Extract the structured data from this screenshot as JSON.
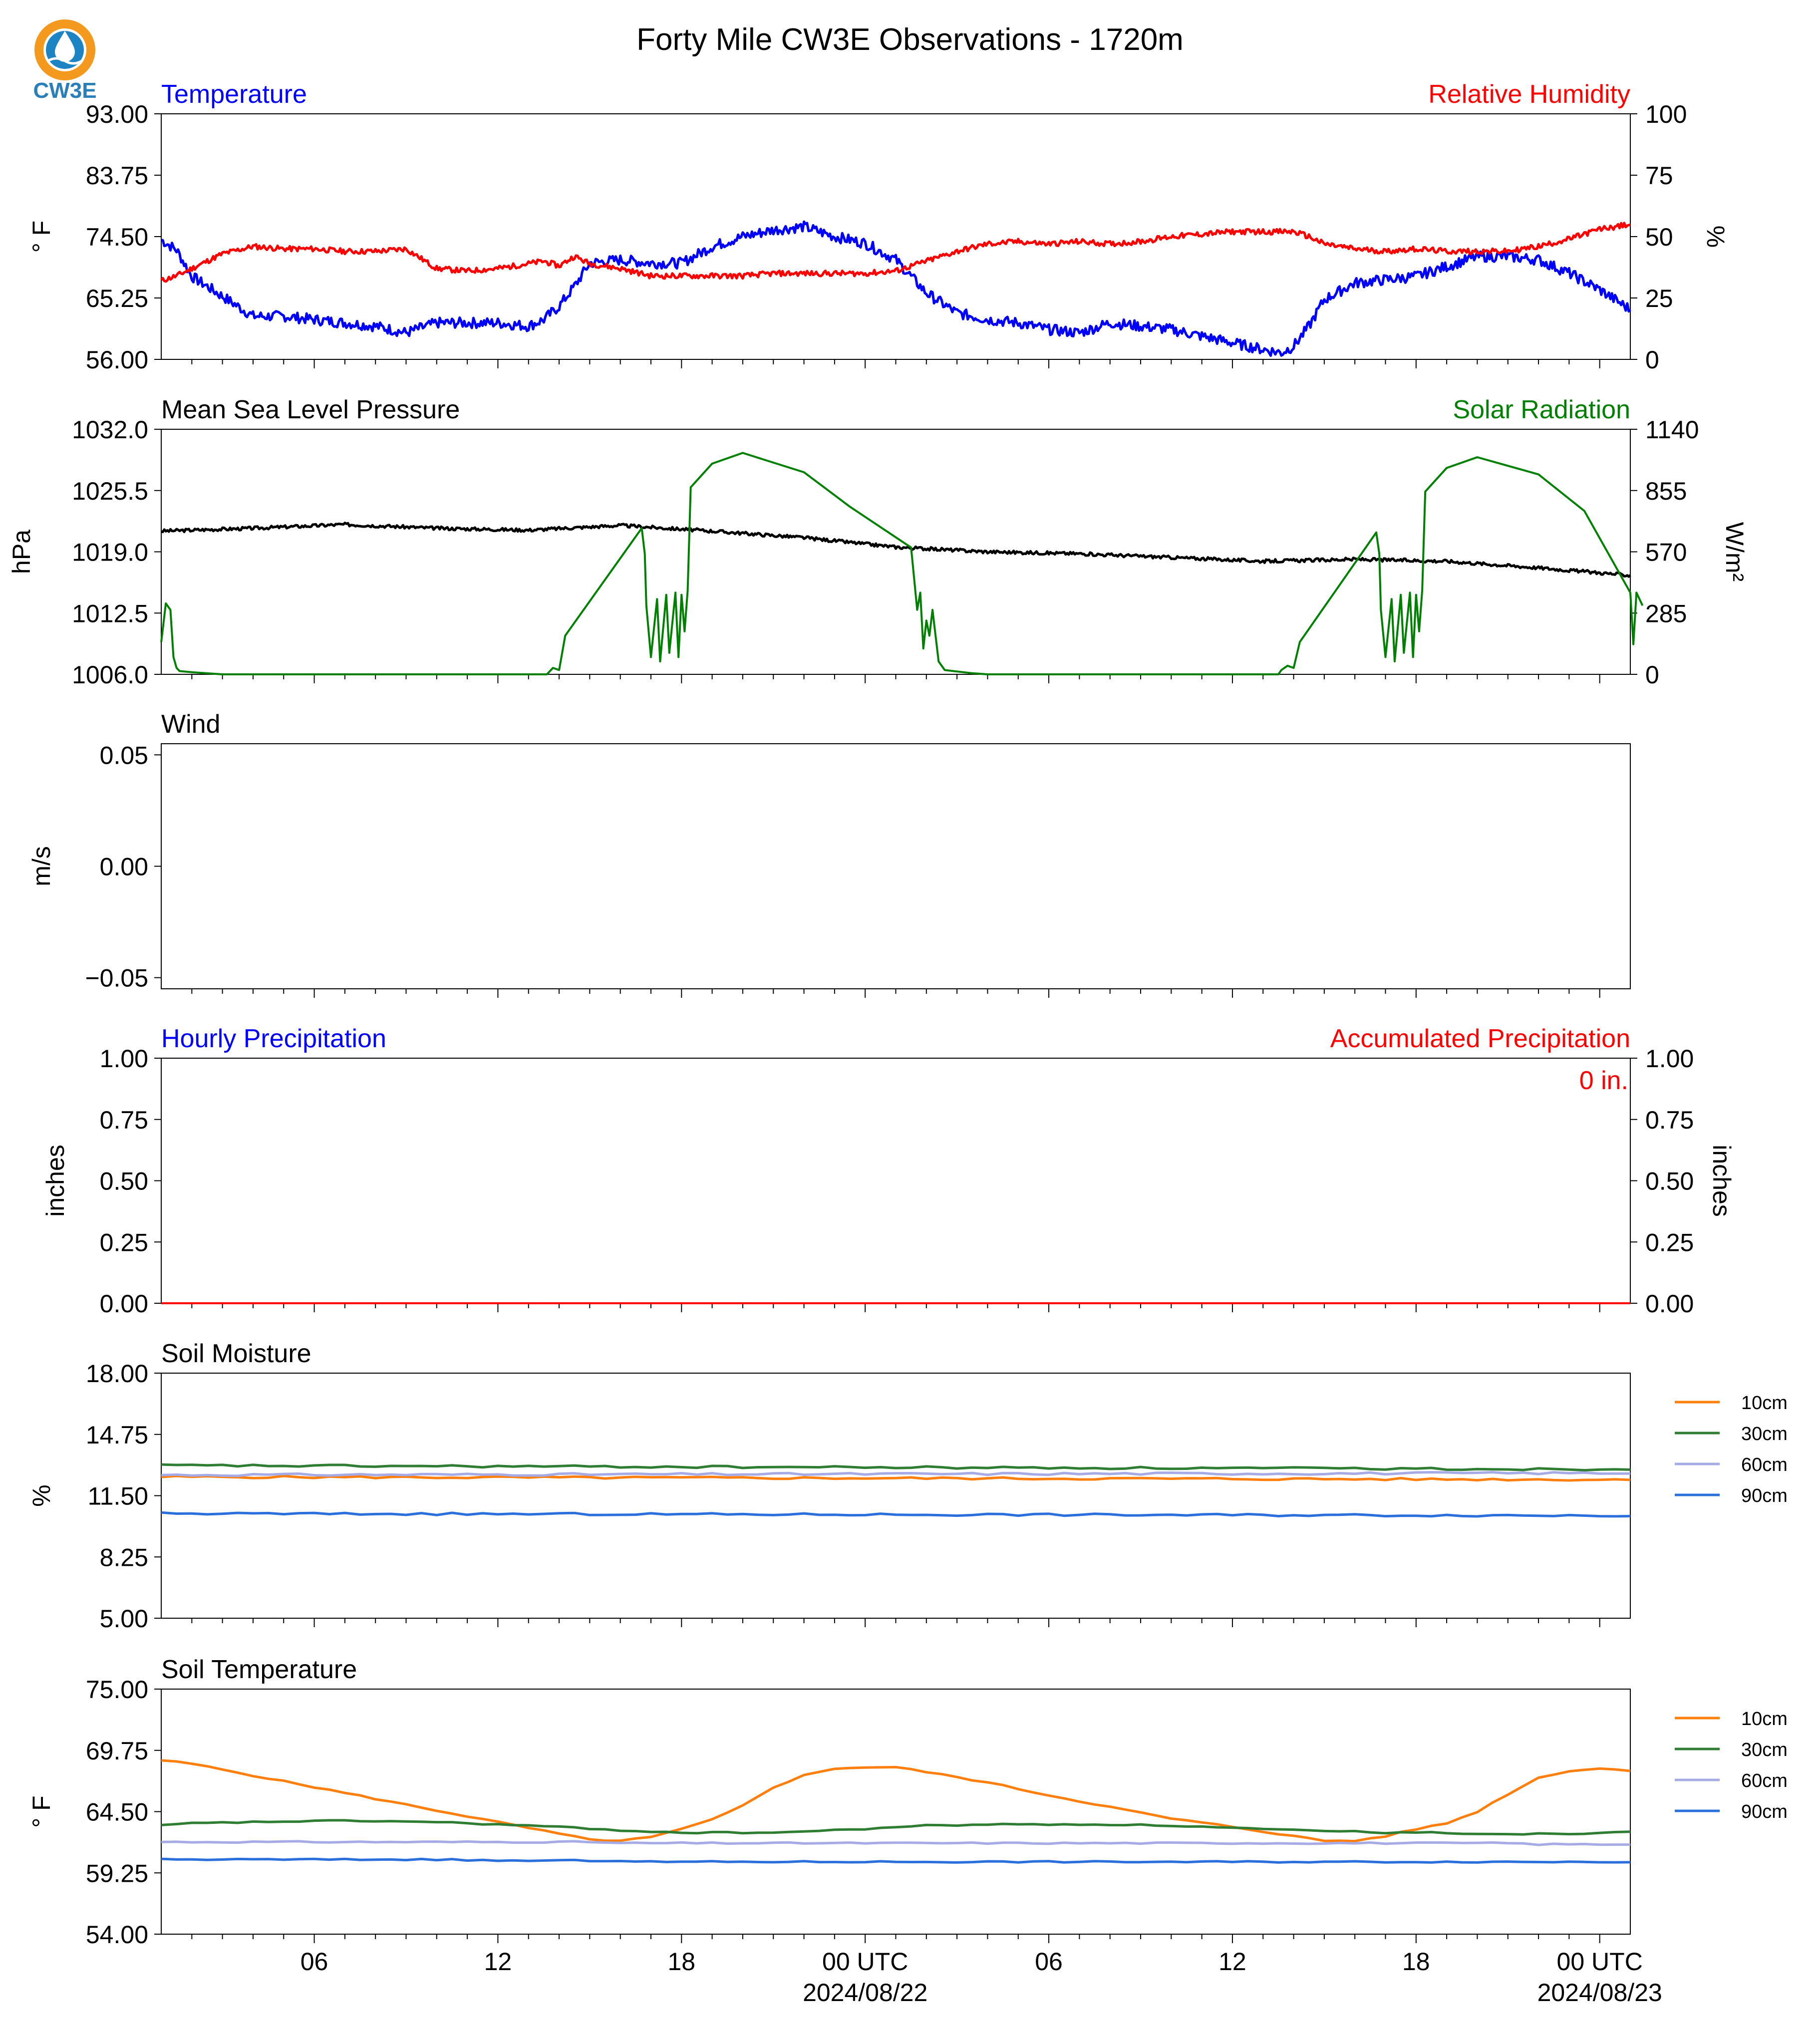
{
  "title": "Forty Mile CW3E Observations - 1720m",
  "logo": {
    "text": "CW3E",
    "icon": "water-drop-logo",
    "colors": {
      "ring": "#f39a1e",
      "waves": "#1d84c4",
      "text": "#2a7fb8"
    }
  },
  "colors": {
    "temperature": "#0000ff",
    "relative_humidity": "#ff0000",
    "pressure": "#000000",
    "solar": "#008000",
    "hourly_precip": "#0000ff",
    "accum_precip": "#ff0000",
    "soil_10cm": "#ff7f0e",
    "soil_30cm": "#2e7d32",
    "soil_60cm": "#a6abe6",
    "soil_90cm": "#2a6fdb"
  },
  "x_axis": {
    "ticks": [
      {
        "hour": 6,
        "label": "06",
        "sub": ""
      },
      {
        "hour": 12,
        "label": "12",
        "sub": ""
      },
      {
        "hour": 18,
        "label": "18",
        "sub": ""
      },
      {
        "hour": 24,
        "label": "00 UTC",
        "sub": "2024/08/22"
      },
      {
        "hour": 30,
        "label": "06",
        "sub": ""
      },
      {
        "hour": 36,
        "label": "12",
        "sub": ""
      },
      {
        "hour": 42,
        "label": "18",
        "sub": ""
      },
      {
        "hour": 48,
        "label": "00 UTC",
        "sub": "2024/08/23"
      }
    ],
    "range_hours": [
      1,
      49
    ]
  },
  "chart_data": [
    {
      "type": "line",
      "panel": "temp_rh",
      "left_title": "Temperature",
      "right_title": "Relative Humidity",
      "ylabel": "° F",
      "ylabel_right": "%",
      "ylim": [
        56,
        93
      ],
      "ylim_right": [
        0,
        100
      ],
      "yticks": [
        "93.00",
        "83.75",
        "74.50",
        "65.25",
        "56.00"
      ],
      "yticks_right": [
        "100",
        "75",
        "50",
        "25",
        "0"
      ],
      "x_hours": [
        1,
        1.5,
        2,
        3,
        4,
        5,
        6,
        7,
        8,
        9,
        10,
        11,
        12,
        13,
        13.5,
        14,
        14.5,
        15,
        16,
        17,
        18,
        19,
        20,
        21,
        22,
        23,
        24,
        25,
        26,
        27,
        28,
        29,
        30,
        31,
        32,
        33,
        34,
        35,
        36,
        37,
        37.6,
        38,
        38.5,
        39,
        40,
        41,
        42,
        43,
        44,
        45,
        46,
        47,
        48,
        49
      ],
      "series": [
        {
          "name": "Temperature",
          "axis": "left",
          "values": [
            74.0,
            72.5,
            68.5,
            65.5,
            62.5,
            62.5,
            62.0,
            61.5,
            61.0,
            60.0,
            61.5,
            61.5,
            61.5,
            61.0,
            62.0,
            64.0,
            67.0,
            70.5,
            71.0,
            70.5,
            70.5,
            73.0,
            74.5,
            75.5,
            76.0,
            74.5,
            73.5,
            71.0,
            66.0,
            63.0,
            62.0,
            61.5,
            60.5,
            60.0,
            61.5,
            61.0,
            60.5,
            59.5,
            58.5,
            57.5,
            57.0,
            58.0,
            61.0,
            65.0,
            67.5,
            68.0,
            68.5,
            70.0,
            71.5,
            71.5,
            71.0,
            69.0,
            66.5,
            63.5
          ]
        },
        {
          "name": "Relative Humidity",
          "axis": "right",
          "values": [
            32,
            34,
            37,
            43,
            46,
            45,
            45,
            44,
            44,
            45,
            37,
            36,
            37,
            39,
            40,
            38,
            42,
            39,
            37,
            34,
            34,
            34,
            34,
            35,
            35,
            35,
            35,
            36,
            40,
            44,
            47,
            48,
            47,
            48,
            47,
            48,
            50,
            51,
            52,
            52,
            52,
            52,
            50,
            47,
            45,
            44,
            45,
            44,
            44,
            44,
            46,
            49,
            53,
            55
          ]
        }
      ]
    },
    {
      "type": "line",
      "panel": "pressure_solar",
      "left_title": "Mean Sea Level Pressure",
      "right_title": "Solar Radiation",
      "ylabel": "hPa",
      "ylabel_right": "W/m²",
      "ylim": [
        1006,
        1032
      ],
      "ylim_right": [
        0,
        1140
      ],
      "yticks": [
        "1032.0",
        "1025.5",
        "1019.0",
        "1012.5",
        "1006.0"
      ],
      "yticks_right": [
        "1140",
        "855",
        "570",
        "285",
        "0"
      ],
      "x_hours": [
        1,
        4,
        7,
        10,
        13,
        16,
        19,
        22,
        25,
        28,
        31,
        34,
        37,
        40,
        43,
        46,
        49
      ],
      "series": [
        {
          "name": "Mean Sea Level Pressure",
          "axis": "left",
          "values": [
            1021.2,
            1021.5,
            1021.9,
            1021.5,
            1021.3,
            1021.8,
            1021.2,
            1020.5,
            1019.5,
            1019.0,
            1018.8,
            1018.4,
            1018.0,
            1018.2,
            1018.0,
            1017.3,
            1016.5
          ]
        },
        {
          "name": "Solar Radiation",
          "axis": "right",
          "x_hours": [
            1,
            1.15,
            1.3,
            1.4,
            1.5,
            1.6,
            2,
            3,
            10,
            13.6,
            13.8,
            14.0,
            14.2,
            16.7,
            16.8,
            16.85,
            17.0,
            17.2,
            17.3,
            17.5,
            17.6,
            17.8,
            17.9,
            18.0,
            18.1,
            18.2,
            18.3,
            19,
            20,
            22,
            23.5,
            25.5,
            25.7,
            25.8,
            25.9,
            26.0,
            26.1,
            26.2,
            26.4,
            26.6,
            27.5,
            28,
            37.5,
            37.6,
            37.8,
            38.0,
            38.2,
            40.7,
            40.8,
            40.85,
            41.0,
            41.2,
            41.3,
            41.5,
            41.6,
            41.8,
            41.9,
            42.0,
            42.1,
            42.2,
            42.3,
            43,
            44,
            46,
            47.5,
            49.0,
            49.1,
            49.2,
            49.4
          ],
          "values": [
            150,
            330,
            300,
            80,
            30,
            15,
            10,
            0,
            0,
            0,
            30,
            20,
            180,
            680,
            560,
            320,
            80,
            350,
            60,
            370,
            100,
            380,
            80,
            370,
            200,
            390,
            870,
            980,
            1030,
            940,
            780,
            590,
            300,
            380,
            120,
            250,
            180,
            300,
            60,
            20,
            5,
            0,
            0,
            20,
            40,
            30,
            150,
            660,
            560,
            300,
            80,
            350,
            60,
            370,
            100,
            380,
            80,
            370,
            200,
            390,
            850,
            960,
            1010,
            930,
            760,
            380,
            140,
            380,
            320
          ]
        }
      ]
    },
    {
      "type": "line",
      "panel": "wind",
      "left_title": "Wind",
      "ylabel": "m/s",
      "ylim": [
        -0.055,
        0.055
      ],
      "yticks": [
        "0.05",
        "0.00",
        "−0.05"
      ],
      "series": []
    },
    {
      "type": "line",
      "panel": "precip",
      "left_title": "Hourly Precipitation",
      "right_title": "Accumulated Precipitation",
      "ylabel": "inches",
      "ylabel_right": "inches",
      "ylim": [
        0,
        1
      ],
      "ylim_right": [
        0,
        1
      ],
      "yticks": [
        "1.00",
        "0.75",
        "0.50",
        "0.25",
        "0.00"
      ],
      "yticks_right": [
        "1.00",
        "0.75",
        "0.50",
        "0.25",
        "0.00"
      ],
      "annotation": "0 in.",
      "series": [
        {
          "name": "Hourly Precipitation",
          "axis": "left",
          "values": [
            0,
            0
          ]
        },
        {
          "name": "Accumulated Precipitation",
          "axis": "right",
          "values": [
            0,
            0
          ]
        }
      ]
    },
    {
      "type": "line",
      "panel": "soil_moisture",
      "left_title": "Soil Moisture",
      "ylabel": "%",
      "ylim": [
        5,
        18
      ],
      "yticks": [
        "18.00",
        "14.75",
        "11.50",
        "8.25",
        "5.00"
      ],
      "legend": [
        "10cm",
        "30cm",
        "60cm",
        "90cm"
      ],
      "x_hours": [
        1,
        49
      ],
      "series": [
        {
          "name": "10cm",
          "values": [
            12.5,
            12.35
          ]
        },
        {
          "name": "30cm",
          "values": [
            13.1,
            12.9
          ]
        },
        {
          "name": "60cm",
          "values": [
            12.6,
            12.7
          ]
        },
        {
          "name": "90cm",
          "values": [
            10.55,
            10.45
          ]
        }
      ]
    },
    {
      "type": "line",
      "panel": "soil_temperature",
      "left_title": "Soil Temperature",
      "ylabel": "° F",
      "ylim": [
        54,
        75
      ],
      "yticks": [
        "75.00",
        "69.75",
        "64.50",
        "59.25",
        "54.00"
      ],
      "legend": [
        "10cm",
        "30cm",
        "60cm",
        "90cm"
      ],
      "x_hours": [
        1,
        2,
        4,
        6,
        8,
        10,
        12,
        14,
        15,
        16,
        17,
        18,
        19,
        20,
        21,
        22,
        23,
        24,
        25,
        26,
        28,
        30,
        32,
        34,
        36,
        38,
        39,
        40,
        41,
        42,
        43,
        44,
        45,
        46,
        47,
        48,
        49
      ],
      "series": [
        {
          "name": "10cm",
          "values": [
            68.9,
            68.6,
            67.6,
            66.6,
            65.6,
            64.6,
            63.6,
            62.6,
            62.1,
            62.0,
            62.3,
            63.0,
            63.8,
            65.0,
            66.6,
            67.6,
            68.2,
            68.3,
            68.3,
            67.9,
            67.0,
            65.9,
            64.9,
            63.9,
            63.2,
            62.4,
            62.0,
            62.0,
            62.4,
            63.0,
            63.5,
            64.5,
            66.0,
            67.4,
            68.0,
            68.2,
            68.0
          ]
        },
        {
          "name": "30cm",
          "values": [
            63.3,
            63.5,
            63.6,
            63.7,
            63.7,
            63.6,
            63.4,
            63.2,
            63.0,
            62.9,
            62.8,
            62.7,
            62.7,
            62.7,
            62.7,
            62.8,
            62.9,
            63.0,
            63.2,
            63.3,
            63.4,
            63.4,
            63.4,
            63.3,
            63.1,
            62.9,
            62.8,
            62.8,
            62.7,
            62.7,
            62.7,
            62.6,
            62.6,
            62.6,
            62.6,
            62.7,
            62.8
          ]
        },
        {
          "name": "60cm",
          "values": [
            61.9,
            61.9,
            61.9,
            61.9,
            61.9,
            61.9,
            61.9,
            61.9,
            61.9,
            61.8,
            61.8,
            61.8,
            61.8,
            61.8,
            61.8,
            61.8,
            61.8,
            61.8,
            61.8,
            61.8,
            61.8,
            61.8,
            61.8,
            61.8,
            61.8,
            61.8,
            61.8,
            61.8,
            61.8,
            61.8,
            61.8,
            61.8,
            61.8,
            61.7,
            61.7,
            61.7,
            61.7
          ]
        },
        {
          "name": "90cm",
          "values": [
            60.4,
            60.4,
            60.4,
            60.4,
            60.4,
            60.4,
            60.3,
            60.3,
            60.3,
            60.3,
            60.2,
            60.2,
            60.2,
            60.2,
            60.2,
            60.2,
            60.2,
            60.2,
            60.2,
            60.2,
            60.2,
            60.2,
            60.2,
            60.2,
            60.2,
            60.2,
            60.2,
            60.2,
            60.2,
            60.2,
            60.2,
            60.2,
            60.2,
            60.2,
            60.2,
            60.2,
            60.2
          ]
        }
      ]
    }
  ]
}
